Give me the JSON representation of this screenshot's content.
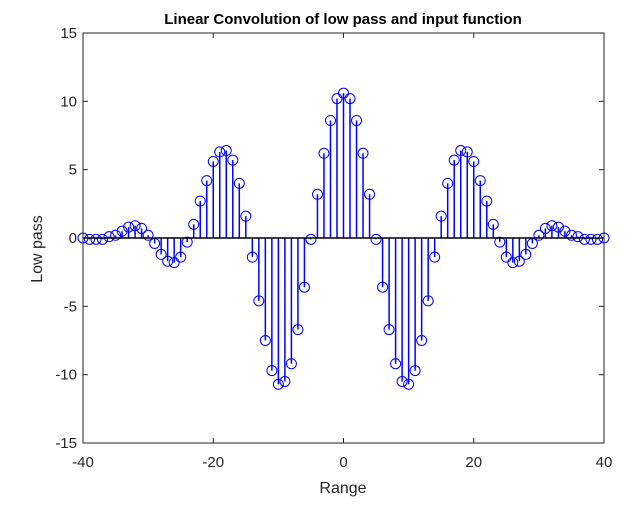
{
  "chart_data": {
    "type": "stem",
    "title": "Linear Convolution of low pass and input function",
    "xlabel": "Range",
    "ylabel": "Low pass",
    "xlim": [
      -40,
      40
    ],
    "ylim": [
      -15,
      15
    ],
    "xticks": [
      -40,
      -20,
      0,
      20,
      40
    ],
    "yticks": [
      -15,
      -10,
      -5,
      0,
      5,
      10,
      15
    ],
    "grid": false,
    "color": "#0000ff",
    "baseline_color": "#000000",
    "x": [
      -40,
      -39,
      -38,
      -37,
      -36,
      -35,
      -34,
      -33,
      -32,
      -31,
      -30,
      -29,
      -28,
      -27,
      -26,
      -25,
      -24,
      -23,
      -22,
      -21,
      -20,
      -19,
      -18,
      -17,
      -16,
      -15,
      -14,
      -13,
      -12,
      -11,
      -10,
      -9,
      -8,
      -7,
      -6,
      -5,
      -4,
      -3,
      -2,
      -1,
      0,
      1,
      2,
      3,
      4,
      5,
      6,
      7,
      8,
      9,
      10,
      11,
      12,
      13,
      14,
      15,
      16,
      17,
      18,
      19,
      20,
      21,
      22,
      23,
      24,
      25,
      26,
      27,
      28,
      29,
      30,
      31,
      32,
      33,
      34,
      35,
      36,
      37,
      38,
      39,
      40
    ],
    "y": [
      0,
      -0.1,
      -0.1,
      -0.1,
      0.1,
      0.2,
      0.5,
      0.8,
      0.9,
      0.7,
      0.2,
      -0.4,
      -1.2,
      -1.7,
      -1.8,
      -1.4,
      -0.3,
      1.0,
      2.7,
      4.2,
      5.6,
      6.3,
      6.4,
      5.7,
      4.0,
      1.6,
      -1.4,
      -4.6,
      -7.5,
      -9.7,
      -10.7,
      -10.5,
      -9.2,
      -6.7,
      -3.6,
      -0.1,
      3.2,
      6.2,
      8.6,
      10.2,
      10.6,
      10.2,
      8.6,
      6.2,
      3.2,
      -0.1,
      -3.6,
      -6.7,
      -9.2,
      -10.5,
      -10.7,
      -9.7,
      -7.5,
      -4.6,
      -1.4,
      1.6,
      4.0,
      5.7,
      6.4,
      6.3,
      5.6,
      4.2,
      2.7,
      1.0,
      -0.3,
      -1.4,
      -1.8,
      -1.7,
      -1.2,
      -0.4,
      0.2,
      0.7,
      0.9,
      0.8,
      0.5,
      0.2,
      0.1,
      -0.1,
      -0.1,
      -0.1,
      0
    ]
  }
}
